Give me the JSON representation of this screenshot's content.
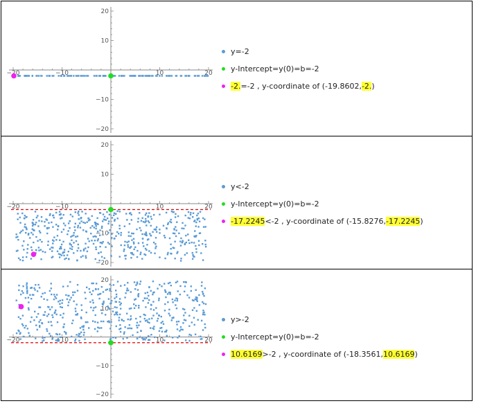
{
  "colors": {
    "points": "#5b9bd5",
    "intercept": "#22dd22",
    "sample": "#ee22ee",
    "boundary": "#dd0000",
    "highlight": "#ffff33"
  },
  "chart_data": [
    {
      "type": "scatter",
      "xlim": [
        -20,
        20
      ],
      "ylim": [
        -20,
        20
      ],
      "x_ticks": [
        -20,
        -10,
        10,
        20
      ],
      "y_ticks": [
        -20,
        -10,
        10,
        20
      ],
      "relation": "eq",
      "boundary": -2,
      "sample_point": {
        "x": -19.8602,
        "y": -2
      },
      "intercept_point": {
        "x": 0,
        "y": -2
      },
      "legend": [
        {
          "label": "y=-2"
        },
        {
          "label": "y-Intercept=y(0)=b=-2"
        },
        {
          "hl1": "-2.",
          "mid": "=-2 , y-coordinate of (-19.8602,",
          "hl2": "-2.",
          "end": ")"
        }
      ]
    },
    {
      "type": "scatter",
      "xlim": [
        -20,
        20
      ],
      "ylim": [
        -20,
        20
      ],
      "x_ticks": [
        -20,
        -10,
        10,
        20
      ],
      "y_ticks": [
        -20,
        -10,
        10,
        20
      ],
      "relation": "lt",
      "boundary": -2,
      "sample_point": {
        "x": -15.8276,
        "y": -17.2245
      },
      "intercept_point": {
        "x": 0,
        "y": -2
      },
      "legend": [
        {
          "label": "y<-2"
        },
        {
          "label": "y-Intercept=y(0)=b=-2"
        },
        {
          "hl1": "-17.2245",
          "mid": "<-2 , y-coordinate of (-15.8276,",
          "hl2": "-17.2245",
          "end": ")"
        }
      ]
    },
    {
      "type": "scatter",
      "xlim": [
        -20,
        20
      ],
      "ylim": [
        -20,
        20
      ],
      "x_ticks": [
        -20,
        -10,
        10,
        20
      ],
      "y_ticks": [
        -20,
        -10,
        10,
        20
      ],
      "relation": "gt",
      "boundary": -2,
      "sample_point": {
        "x": -18.3561,
        "y": 10.6169
      },
      "intercept_point": {
        "x": 0,
        "y": -2
      },
      "legend": [
        {
          "label": "y>-2"
        },
        {
          "label": "y-Intercept=y(0)=b=-2"
        },
        {
          "hl1": "10.6169",
          "mid": ">-2 , y-coordinate of (-18.3561,",
          "hl2": "10.6169",
          "end": ")"
        }
      ]
    }
  ]
}
